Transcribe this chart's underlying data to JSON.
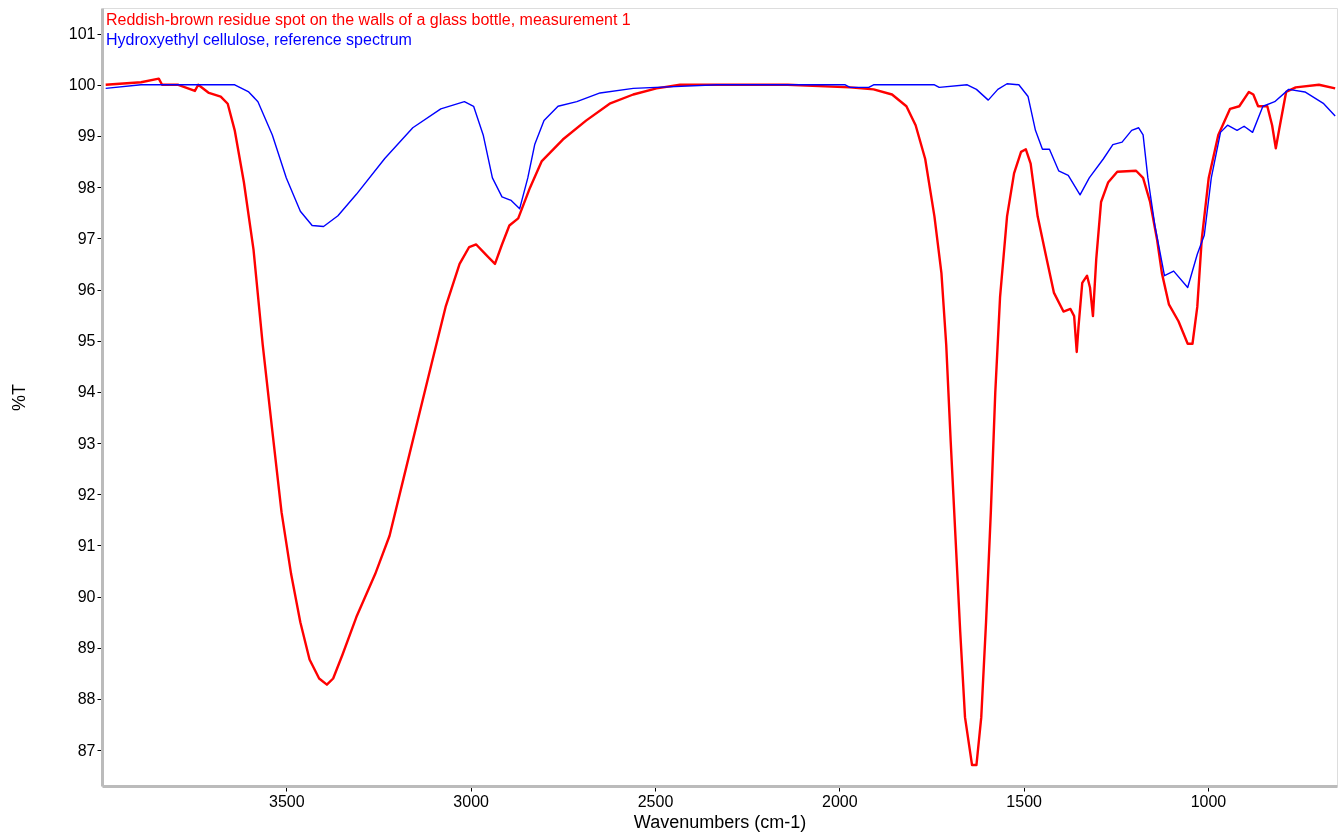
{
  "chart_data": {
    "type": "line",
    "xlabel": "Wavenumbers (cm-1)",
    "ylabel": "%T",
    "xlim": [
      4000,
      650
    ],
    "ylim": [
      86.3,
      101.5
    ],
    "xticks": [
      3500,
      3000,
      2500,
      2000,
      1500,
      1000
    ],
    "yticks": [
      87,
      88,
      89,
      90,
      91,
      92,
      93,
      94,
      95,
      96,
      97,
      98,
      99,
      100,
      101
    ],
    "grid": false,
    "legend": "top left",
    "marker": "none",
    "line_style": "solid",
    "series": [
      {
        "name": "Reddish-brown residue spot on the walls of a glass bottle, measurement 1",
        "color": "#ff0000",
        "x": [
          3990,
          3894,
          3846,
          3837,
          3793,
          3748,
          3739,
          3710,
          3678,
          3659,
          3640,
          3615,
          3589,
          3564,
          3538,
          3513,
          3487,
          3462,
          3437,
          3411,
          3390,
          3373,
          3348,
          3310,
          3259,
          3220,
          3182,
          3144,
          3106,
          3068,
          3030,
          3004,
          2985,
          2960,
          2934,
          2915,
          2895,
          2871,
          2839,
          2807,
          2750,
          2687,
          2623,
          2559,
          2496,
          2432,
          2140,
          1971,
          1907,
          1857,
          1818,
          1793,
          1767,
          1742,
          1723,
          1710,
          1698,
          1685,
          1672,
          1659,
          1640,
          1628,
          1615,
          1602,
          1589,
          1577,
          1564,
          1545,
          1526,
          1507,
          1494,
          1481,
          1462,
          1443,
          1418,
          1392,
          1373,
          1363,
          1356,
          1351,
          1341,
          1328,
          1320,
          1312,
          1303,
          1290,
          1271,
          1246,
          1195,
          1176,
          1157,
          1138,
          1125,
          1106,
          1080,
          1055,
          1042,
          1029,
          1017,
          998,
          972,
          940,
          915,
          889,
          877,
          864,
          839,
          826,
          816,
          807,
          788,
          762,
          699,
          655
        ],
        "values": [
          100,
          100.05,
          100.12,
          100,
          100,
          99.88,
          100,
          99.84,
          99.77,
          99.63,
          99.11,
          98.09,
          96.78,
          94.92,
          93.24,
          91.65,
          90.44,
          89.5,
          88.77,
          88.4,
          88.28,
          88.4,
          88.86,
          89.6,
          90.44,
          91.19,
          92.31,
          93.43,
          94.55,
          95.66,
          96.5,
          96.83,
          96.88,
          96.69,
          96.5,
          96.88,
          97.25,
          97.39,
          97.99,
          98.51,
          98.93,
          99.3,
          99.63,
          99.81,
          99.93,
          100,
          100,
          99.95,
          99.91,
          99.81,
          99.58,
          99.21,
          98.55,
          97.43,
          96.32,
          94.92,
          93.05,
          91.18,
          89.31,
          87.64,
          86.71,
          86.71,
          87.64,
          89.5,
          91.65,
          93.98,
          95.85,
          97.43,
          98.27,
          98.69,
          98.74,
          98.46,
          97.43,
          96.78,
          95.94,
          95.57,
          95.62,
          95.48,
          94.78,
          95.29,
          96.13,
          96.27,
          96.04,
          95.48,
          96.6,
          97.71,
          98.09,
          98.3,
          98.32,
          98.18,
          97.71,
          96.97,
          96.32,
          95.71,
          95.38,
          94.94,
          94.94,
          95.66,
          96.97,
          98.18,
          99.02,
          99.53,
          99.58,
          99.86,
          99.81,
          99.58,
          99.58,
          99.21,
          98.76,
          99.12,
          99.86,
          99.95,
          100,
          99.93
        ]
      },
      {
        "name": "Hydroxyethyl cellulose, reference spectrum",
        "color": "#0000ff",
        "x": [
          3990,
          3894,
          3640,
          3602,
          3577,
          3538,
          3500,
          3462,
          3430,
          3399,
          3360,
          3310,
          3233,
          3157,
          3081,
          3017,
          2992,
          2966,
          2941,
          2915,
          2890,
          2867,
          2845,
          2826,
          2801,
          2763,
          2712,
          2649,
          2559,
          2331,
          2140,
          1984,
          1971,
          1920,
          1907,
          1742,
          1729,
          1653,
          1628,
          1596,
          1570,
          1545,
          1513,
          1488,
          1468,
          1449,
          1430,
          1405,
          1379,
          1347,
          1322,
          1284,
          1258,
          1233,
          1207,
          1188,
          1176,
          1163,
          1144,
          1118,
          1093,
          1055,
          1029,
          1010,
          991,
          966,
          947,
          921,
          902,
          879,
          851,
          819,
          781,
          737,
          686,
          655
        ],
        "values": [
          99.93,
          100,
          100,
          99.86,
          99.67,
          99.02,
          98.18,
          97.53,
          97.25,
          97.23,
          97.44,
          97.86,
          98.56,
          99.16,
          99.53,
          99.67,
          99.58,
          99.02,
          98.18,
          97.81,
          97.74,
          97.58,
          98.18,
          98.84,
          99.3,
          99.58,
          99.67,
          99.84,
          99.93,
          100,
          100,
          100,
          99.95,
          99.95,
          100,
          100,
          99.95,
          100,
          99.91,
          99.7,
          99.91,
          100.02,
          100,
          99.77,
          99.11,
          98.74,
          98.74,
          98.32,
          98.23,
          97.85,
          98.18,
          98.55,
          98.83,
          98.88,
          99.11,
          99.16,
          99.02,
          98.18,
          97.25,
          96.27,
          96.36,
          96.04,
          96.69,
          97.06,
          98.18,
          99.07,
          99.21,
          99.11,
          99.19,
          99.07,
          99.58,
          99.67,
          99.91,
          99.86,
          99.63,
          99.39
        ]
      }
    ]
  }
}
